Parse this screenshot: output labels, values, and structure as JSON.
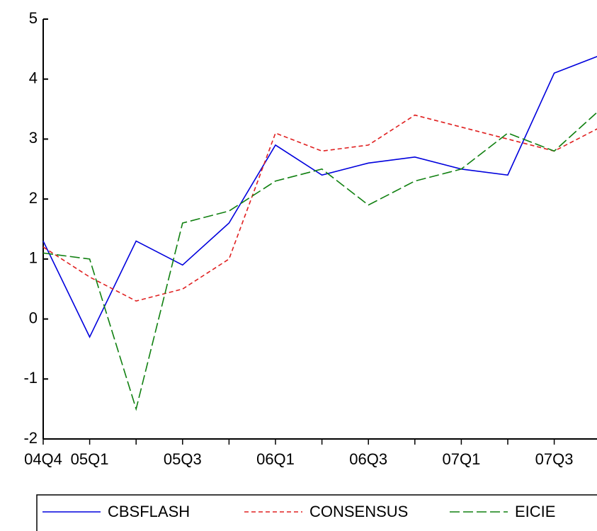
{
  "chart_data": {
    "type": "line",
    "categories": [
      "04Q4",
      "05Q1",
      null,
      "05Q3",
      null,
      "06Q1",
      null,
      "06Q3",
      null,
      "07Q1",
      null,
      "07Q3",
      null
    ],
    "series": [
      {
        "name": "CBSFLASH",
        "color": "#0000dd",
        "dash": "solid",
        "values": [
          1.3,
          -0.3,
          1.3,
          0.9,
          1.6,
          2.9,
          2.4,
          2.6,
          2.7,
          2.5,
          2.4,
          4.1,
          4.4
        ]
      },
      {
        "name": "CONSENSUS",
        "color": "#e02020",
        "dash": "short",
        "values": [
          1.2,
          0.7,
          0.3,
          0.5,
          1.0,
          3.1,
          2.8,
          2.9,
          3.4,
          3.2,
          3.0,
          2.8,
          3.2
        ]
      },
      {
        "name": "EICIE",
        "color": "#108010",
        "dash": "long",
        "values": [
          1.1,
          1.0,
          -1.5,
          1.6,
          1.8,
          2.3,
          2.5,
          1.9,
          2.3,
          2.5,
          3.1,
          2.8,
          3.5
        ]
      }
    ],
    "ylim": [
      -2,
      5
    ],
    "yticks": [
      -2,
      -1,
      0,
      1,
      2,
      3,
      4,
      5
    ],
    "grid": false,
    "legend": "bottom"
  }
}
